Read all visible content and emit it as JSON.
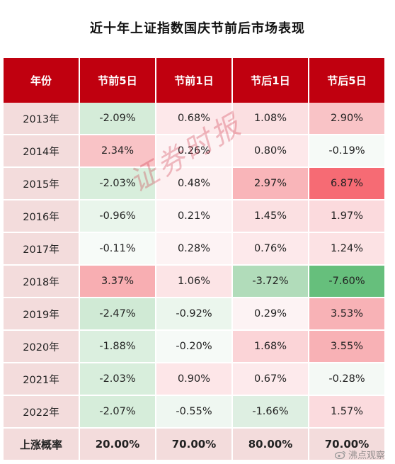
{
  "title": "近十年上证指数国庆节前后市场表现",
  "headers": [
    "年份",
    "节前5日",
    "节前1日",
    "节后1日",
    "节后5日"
  ],
  "rows": [
    {
      "year": "2013年",
      "cells": [
        {
          "text": "-2.09%",
          "bg": "#d5ecd9"
        },
        {
          "text": "0.68%",
          "bg": "#fde8ea"
        },
        {
          "text": "1.08%",
          "bg": "#fbdfe1"
        },
        {
          "text": "2.90%",
          "bg": "#f9c3c6"
        }
      ]
    },
    {
      "year": "2014年",
      "cells": [
        {
          "text": "2.34%",
          "bg": "#f9c3c6"
        },
        {
          "text": "0.26%",
          "bg": "#fdf3f4"
        },
        {
          "text": "0.80%",
          "bg": "#fde8ea"
        },
        {
          "text": "-0.19%",
          "bg": "#f6faf7"
        }
      ]
    },
    {
      "year": "2015年",
      "cells": [
        {
          "text": "-2.03%",
          "bg": "#d8eedc"
        },
        {
          "text": "0.48%",
          "bg": "#fdf0f1"
        },
        {
          "text": "2.97%",
          "bg": "#f9b5b9"
        },
        {
          "text": "6.87%",
          "bg": "#f66b74"
        }
      ]
    },
    {
      "year": "2016年",
      "cells": [
        {
          "text": "-0.96%",
          "bg": "#e9f5eb"
        },
        {
          "text": "0.21%",
          "bg": "#fdf4f5"
        },
        {
          "text": "1.45%",
          "bg": "#fbe0e2"
        },
        {
          "text": "1.97%",
          "bg": "#fbdadd"
        }
      ]
    },
    {
      "year": "2017年",
      "cells": [
        {
          "text": "-0.11%",
          "bg": "#f7fbf8"
        },
        {
          "text": "0.28%",
          "bg": "#fdf3f4"
        },
        {
          "text": "0.76%",
          "bg": "#fde9eb"
        },
        {
          "text": "1.24%",
          "bg": "#fce2e4"
        }
      ]
    },
    {
      "year": "2018年",
      "cells": [
        {
          "text": "3.37%",
          "bg": "#f8aeb2"
        },
        {
          "text": "1.06%",
          "bg": "#fce4e6"
        },
        {
          "text": "-3.72%",
          "bg": "#b1dcba"
        },
        {
          "text": "-7.60%",
          "bg": "#66bf7c"
        }
      ]
    },
    {
      "year": "2019年",
      "cells": [
        {
          "text": "-2.47%",
          "bg": "#d0ead5"
        },
        {
          "text": "-0.92%",
          "bg": "#ebf6ed"
        },
        {
          "text": "0.29%",
          "bg": "#fdf3f4"
        },
        {
          "text": "3.53%",
          "bg": "#f8b2b6"
        }
      ]
    },
    {
      "year": "2020年",
      "cells": [
        {
          "text": "-1.88%",
          "bg": "#dbefdf"
        },
        {
          "text": "-0.20%",
          "bg": "#f6faf7"
        },
        {
          "text": "1.68%",
          "bg": "#fbd4d7"
        },
        {
          "text": "3.55%",
          "bg": "#f8b1b5"
        }
      ]
    },
    {
      "year": "2021年",
      "cells": [
        {
          "text": "-2.03%",
          "bg": "#d8eedc"
        },
        {
          "text": "0.90%",
          "bg": "#fde6e8"
        },
        {
          "text": "0.67%",
          "bg": "#fdeaec"
        },
        {
          "text": "-0.28%",
          "bg": "#f4f9f5"
        }
      ]
    },
    {
      "year": "2022年",
      "cells": [
        {
          "text": "-2.07%",
          "bg": "#d6edda"
        },
        {
          "text": "-0.55%",
          "bg": "#eff7f1"
        },
        {
          "text": "-1.66%",
          "bg": "#deefe2"
        },
        {
          "text": "1.57%",
          "bg": "#fbdbde"
        }
      ]
    }
  ],
  "footer": {
    "label": "上涨概率",
    "values": [
      "20.00%",
      "70.00%",
      "80.00%",
      "70.00%"
    ]
  },
  "watermark": "证券时报",
  "credit": "沸点观察"
}
